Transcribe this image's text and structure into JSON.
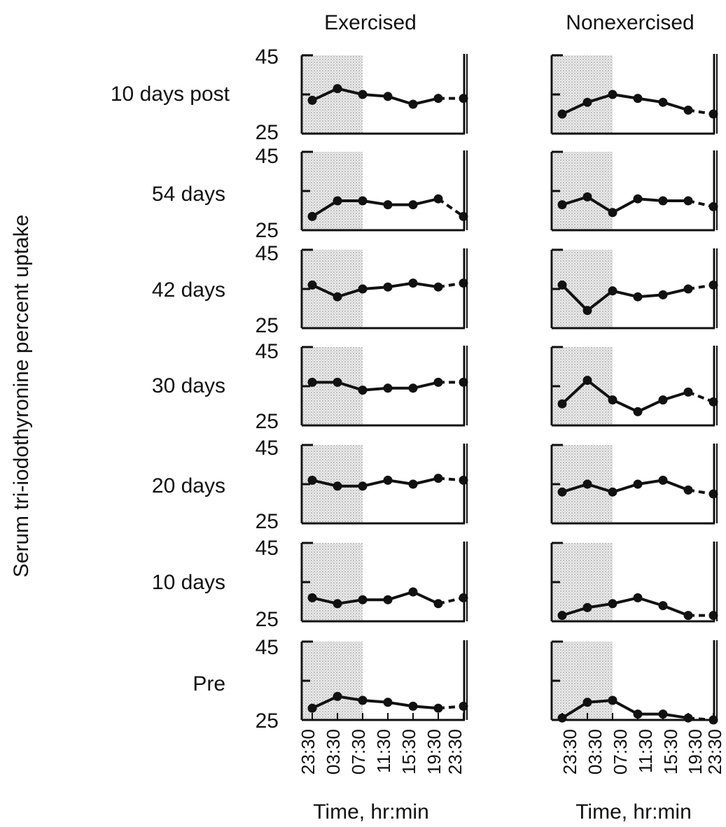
{
  "chart_data": {
    "type": "line",
    "ylabel": "Serum tri-iodothyronine percent uptake",
    "xlabel": "Time, hr:min",
    "ylim": [
      25,
      45
    ],
    "y_ticks": [
      "45",
      "25"
    ],
    "x": [
      "23:30",
      "03:30",
      "07:30",
      "11:30",
      "15:30",
      "19:30",
      "23:30"
    ],
    "columns": [
      "Exercised",
      "Nonexercised"
    ],
    "rows": [
      "10 days post",
      "54 days",
      "42 days",
      "30 days",
      "20 days",
      "10 days",
      "Pre"
    ],
    "shaded_interval": [
      "23:30",
      "07:30"
    ],
    "colors": {
      "line": "#111111",
      "shade": "#d9d9d9"
    },
    "panels": [
      {
        "group": "Exercised",
        "period": "10 days post",
        "values": [
          33.5,
          36.5,
          35,
          34.5,
          32.5,
          34,
          34
        ]
      },
      {
        "group": "Exercised",
        "period": "54 days",
        "values": [
          28.5,
          32.5,
          32.5,
          31.5,
          31.5,
          33,
          28.5
        ]
      },
      {
        "group": "Exercised",
        "period": "42 days",
        "values": [
          36,
          33,
          35,
          35.5,
          36.5,
          35.5,
          36.5
        ]
      },
      {
        "group": "Exercised",
        "period": "30 days",
        "values": [
          36,
          36,
          34,
          34.5,
          34.5,
          36,
          36
        ]
      },
      {
        "group": "Exercised",
        "period": "20 days",
        "values": [
          36,
          34.5,
          34.5,
          36,
          35,
          36.5,
          36
        ]
      },
      {
        "group": "Exercised",
        "period": "10 days",
        "values": [
          31,
          29.5,
          30.5,
          30.5,
          32.5,
          29.5,
          31
        ]
      },
      {
        "group": "Exercised",
        "period": "Pre",
        "values": [
          28,
          31,
          30,
          29.5,
          28.5,
          28,
          28.5
        ]
      },
      {
        "group": "Nonexercised",
        "period": "10 days post",
        "values": [
          30,
          33,
          35,
          34,
          33,
          31,
          30
        ]
      },
      {
        "group": "Nonexercised",
        "period": "54 days",
        "values": [
          31.5,
          33.5,
          29.5,
          33,
          32.5,
          32.5,
          31
        ]
      },
      {
        "group": "Nonexercised",
        "period": "42 days",
        "values": [
          36,
          29.5,
          34.5,
          33,
          33.5,
          35,
          36
        ]
      },
      {
        "group": "Nonexercised",
        "period": "30 days",
        "values": [
          30.5,
          36.5,
          31.5,
          28.5,
          31.5,
          33.5,
          31
        ]
      },
      {
        "group": "Nonexercised",
        "period": "20 days",
        "values": [
          33,
          35,
          33,
          35,
          36,
          33.5,
          32.5
        ]
      },
      {
        "group": "Nonexercised",
        "period": "10 days",
        "values": [
          26.5,
          28.5,
          29.5,
          31,
          29,
          26.5,
          26.5
        ]
      },
      {
        "group": "Nonexercised",
        "period": "Pre",
        "values": [
          25.5,
          29.5,
          30,
          26.5,
          26.5,
          25.5,
          25
        ]
      }
    ]
  }
}
